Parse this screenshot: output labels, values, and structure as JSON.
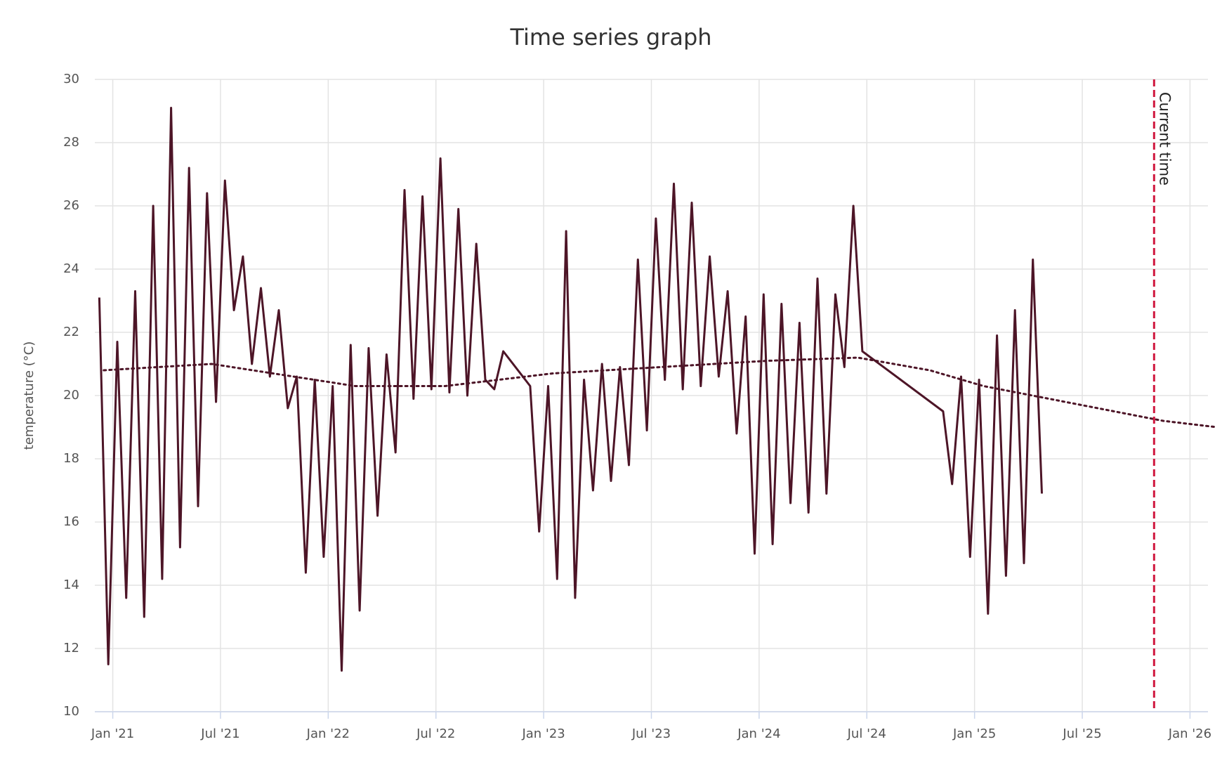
{
  "chart_data": {
    "type": "line",
    "title": "Time series graph",
    "y_label": "temperature (°C)",
    "xlim": [
      "2020-12",
      "2026-02"
    ],
    "xticks": [
      {
        "value": "2021-01",
        "label": "Jan '21"
      },
      {
        "value": "2021-07",
        "label": "Jul '21"
      },
      {
        "value": "2022-01",
        "label": "Jan '22"
      },
      {
        "value": "2022-07",
        "label": "Jul '22"
      },
      {
        "value": "2023-01",
        "label": "Jan '23"
      },
      {
        "value": "2023-07",
        "label": "Jul '23"
      },
      {
        "value": "2024-01",
        "label": "Jan '24"
      },
      {
        "value": "2024-07",
        "label": "Jul '24"
      },
      {
        "value": "2025-01",
        "label": "Jan '25"
      },
      {
        "value": "2025-07",
        "label": "Jul '25"
      },
      {
        "value": "2026-01",
        "label": "Jan '26"
      }
    ],
    "ylim": [
      10,
      30
    ],
    "yticks": [
      10,
      12,
      14,
      16,
      18,
      20,
      22,
      24,
      26,
      28,
      30
    ],
    "grid": true,
    "series": [
      {
        "color": "#4d1527",
        "dash": false,
        "x": [
          "2020-12",
          "2020-12",
          "2021-01",
          "2021-01",
          "2021-02",
          "2021-02",
          "2021-03",
          "2021-03",
          "2021-04",
          "2021-04",
          "2021-05",
          "2021-05",
          "2021-06",
          "2021-06",
          "2021-07",
          "2021-07",
          "2021-08",
          "2021-08",
          "2021-09",
          "2021-09",
          "2021-10",
          "2021-10",
          "2021-11",
          "2021-11",
          "2021-12",
          "2021-12",
          "2022-01",
          "2022-01",
          "2022-02",
          "2022-02",
          "2022-03",
          "2022-03",
          "2022-04",
          "2022-04",
          "2022-05",
          "2022-05",
          "2022-06",
          "2022-06",
          "2022-07",
          "2022-07",
          "2022-08",
          "2022-08",
          "2022-09",
          "2022-09",
          "2022-10",
          "2022-10",
          "2022-12",
          "2022-12",
          "2023-01",
          "2023-01",
          "2023-02",
          "2023-02",
          "2023-03",
          "2023-03",
          "2023-04",
          "2023-04",
          "2023-05",
          "2023-05",
          "2023-06",
          "2023-06",
          "2023-07",
          "2023-07",
          "2023-08",
          "2023-08",
          "2023-09",
          "2023-09",
          "2023-10",
          "2023-10",
          "2023-11",
          "2023-11",
          "2023-12",
          "2023-12",
          "2024-01",
          "2024-01",
          "2024-02",
          "2024-02",
          "2024-03",
          "2024-03",
          "2024-04",
          "2024-04",
          "2024-05",
          "2024-05",
          "2024-06",
          "2024-06",
          "2024-11",
          "2024-11",
          "2024-12",
          "2024-12",
          "2025-01",
          "2025-01",
          "2025-02",
          "2025-02",
          "2025-03",
          "2025-03",
          "2025-04",
          "2025-04"
        ],
        "values": [
          23.1,
          11.5,
          21.7,
          13.6,
          23.3,
          13.0,
          26.0,
          14.2,
          29.1,
          15.2,
          27.2,
          16.5,
          26.4,
          19.8,
          26.8,
          22.7,
          24.4,
          21.0,
          23.4,
          20.6,
          22.7,
          19.6,
          20.6,
          14.4,
          20.5,
          14.9,
          20.3,
          11.3,
          21.6,
          13.2,
          21.5,
          16.2,
          21.3,
          18.2,
          26.5,
          19.9,
          26.3,
          20.2,
          27.5,
          20.1,
          25.9,
          20.0,
          24.8,
          20.5,
          20.2,
          21.4,
          20.3,
          15.7,
          20.3,
          14.2,
          25.2,
          13.6,
          20.5,
          17.0,
          21.0,
          17.3,
          20.9,
          17.8,
          24.3,
          18.9,
          25.6,
          20.5,
          26.7,
          20.2,
          26.1,
          20.3,
          24.4,
          20.6,
          23.3,
          18.8,
          22.5,
          15.0,
          23.2,
          15.3,
          22.9,
          16.6,
          22.3,
          16.3,
          23.7,
          16.9,
          23.2,
          20.9,
          26.0,
          21.4,
          19.5,
          17.2,
          20.6,
          14.9,
          20.5,
          13.1,
          21.9,
          14.3,
          22.7,
          14.7,
          24.3,
          16.9
        ]
      },
      {
        "color": "#4d1527",
        "dash": true,
        "x": [
          "2020-12",
          "2021-06",
          "2022-02",
          "2022-07",
          "2023-01",
          "2023-07",
          "2024-01",
          "2024-06",
          "2024-10",
          "2025-01",
          "2025-11",
          "2026-02"
        ],
        "values": [
          20.8,
          21.0,
          20.3,
          20.3,
          20.7,
          20.9,
          21.1,
          21.2,
          20.8,
          20.3,
          19.2,
          19.0
        ]
      }
    ],
    "annotations": [
      {
        "x": "2025-11",
        "label": "Current time",
        "color": "#d0183f"
      }
    ]
  }
}
